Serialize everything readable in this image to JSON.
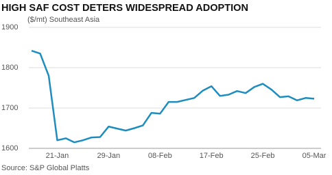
{
  "chart_data": {
    "type": "line",
    "title": "HIGH SAF COST DETERS WIDESPREAD ADOPTION",
    "subtitle": "($/mt) Southeast Asia",
    "source": "Source: S&P Global Platts",
    "categories": [
      null,
      null,
      null,
      "21-Jan",
      null,
      null,
      null,
      null,
      null,
      "29-Jan",
      null,
      null,
      null,
      null,
      null,
      "08-Feb",
      null,
      null,
      null,
      null,
      null,
      "17-Feb",
      null,
      null,
      null,
      null,
      null,
      "25-Feb",
      null,
      null,
      null,
      null,
      null,
      "05-Mar"
    ],
    "series": [
      {
        "name": "Southeast Asia",
        "color": "#1d8cbf",
        "values": [
          1842,
          1835,
          1780,
          1620,
          1625,
          1615,
          1620,
          1627,
          1628,
          1654,
          1649,
          1644,
          1650,
          1657,
          1688,
          1686,
          1715,
          1715,
          1720,
          1725,
          1743,
          1754,
          1730,
          1733,
          1742,
          1737,
          1752,
          1760,
          1746,
          1727,
          1729,
          1719,
          1725,
          1723
        ]
      }
    ],
    "ylim": [
      1600,
      1900
    ],
    "yticks": [
      1600,
      1700,
      1800,
      1900
    ],
    "grid": true
  }
}
